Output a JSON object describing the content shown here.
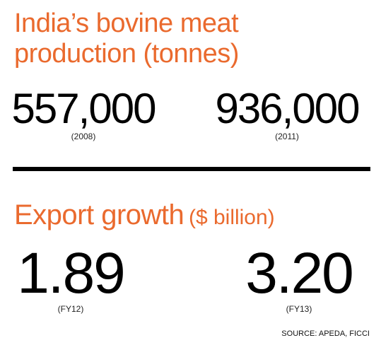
{
  "colors": {
    "accent": "#ea6a2e",
    "text": "#000000",
    "divider": "#000000"
  },
  "production": {
    "title_line1": "India’s bovine meat",
    "title_line2": "production (tonnes)",
    "stats": [
      {
        "value": "557,000",
        "period": "(2008)"
      },
      {
        "value": "936,000",
        "period": "(2011)"
      }
    ]
  },
  "exports": {
    "title": "Export growth",
    "unit": "($ billion)",
    "stats": [
      {
        "value": "1.89",
        "period": "(FY12)"
      },
      {
        "value": "3.20",
        "period": "(FY13)"
      }
    ]
  },
  "source": "SOURCE: APEDA, FICCI"
}
